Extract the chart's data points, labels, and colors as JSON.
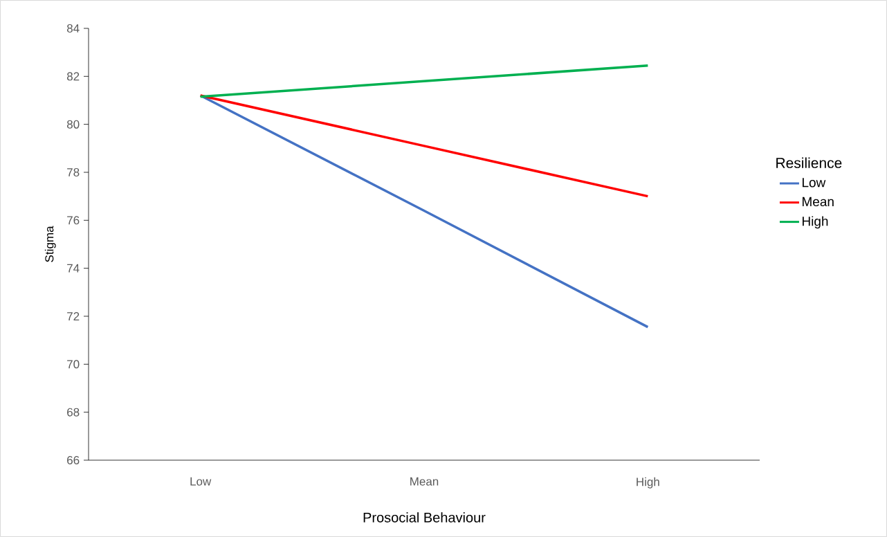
{
  "chart_data": {
    "type": "line",
    "xlabel": "Prosocial Behaviour",
    "ylabel": "Stigma",
    "legend_title": "Resilience",
    "categories": [
      "Low",
      "Mean",
      "High"
    ],
    "series": [
      {
        "name": "Low",
        "color": "#4472c4",
        "values": [
          81.2,
          76.4,
          71.55
        ]
      },
      {
        "name": "Mean",
        "color": "#ff0000",
        "values": [
          81.2,
          79.1,
          77.0
        ]
      },
      {
        "name": "High",
        "color": "#00b050",
        "values": [
          81.15,
          81.8,
          82.45
        ]
      }
    ],
    "ylim": [
      66,
      84
    ],
    "yticks": [
      66,
      68,
      70,
      72,
      74,
      76,
      78,
      80,
      82,
      84
    ],
    "legend": "right",
    "grid": false
  }
}
